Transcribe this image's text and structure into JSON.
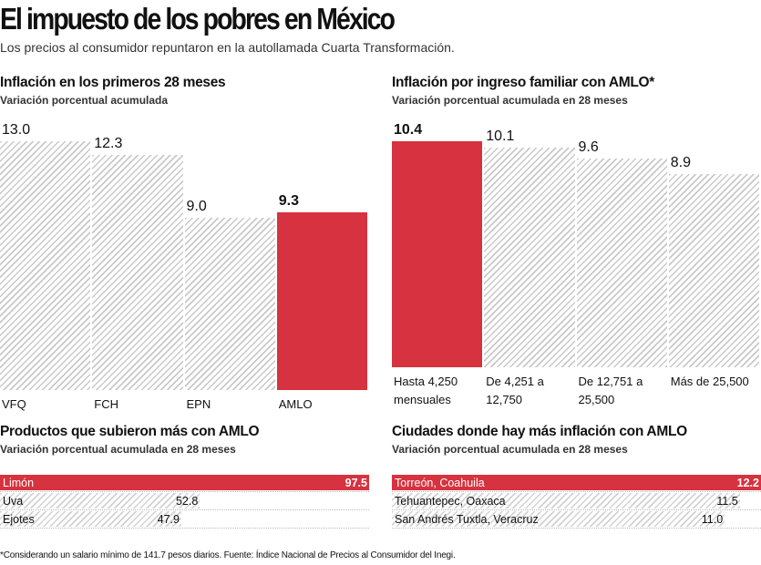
{
  "title": "El impuesto de los pobres en México",
  "subtitle": "Los precios al consumidor repuntaron en la autollamada Cuarta Transformación.",
  "footnote": "*Considerando un salario mínimo de 141.7 pesos diarios. Fuente: Índice Nacional de Precios al Consumidor del Inegi.",
  "chart_data": [
    {
      "type": "bar",
      "orientation": "vertical",
      "title": "Inflación en los primeros 28 meses",
      "subtitle": "Variación porcentual acumulada",
      "categories": [
        "VFQ",
        "FCH",
        "EPN",
        "AMLO"
      ],
      "values": [
        13.0,
        12.3,
        9.0,
        9.3
      ],
      "value_labels": [
        "13.0",
        "12.3",
        "9.0",
        "9.3"
      ],
      "highlight": [
        false,
        false,
        false,
        true
      ],
      "color": "#d7323f",
      "hatch_color": "#c9c9c9"
    },
    {
      "type": "bar",
      "orientation": "vertical",
      "title": "Inflación por ingreso familiar con AMLO*",
      "subtitle": "Variación porcentual acumulada en 28 meses",
      "categories": [
        "Hasta 4,250 mensuales",
        "De 4,251 a 12,750",
        "De 12,751 a 25,500",
        "Más de 25,500"
      ],
      "values": [
        10.4,
        10.1,
        9.6,
        8.9
      ],
      "highlight": [
        true,
        false,
        false,
        false
      ],
      "color": "#d7323f",
      "hatch_color": "#c9c9c9"
    },
    {
      "type": "bar",
      "orientation": "horizontal",
      "title": "Productos que subieron más con AMLO",
      "subtitle": "Variación porcentual acumulada en 28 meses",
      "categories": [
        "Limón",
        "Uva",
        "Ejotes"
      ],
      "values": [
        97.5,
        52.8,
        47.9
      ],
      "highlight": [
        true,
        false,
        false
      ],
      "color": "#d7323f",
      "hatch_color": "#d2d2d2"
    },
    {
      "type": "bar",
      "orientation": "horizontal",
      "title": "Ciudades donde hay más inflación con AMLO",
      "subtitle": "Variación porcentual acumulada en 28 meses",
      "categories": [
        "Torreón, Coahuila",
        "Tehuantepec, Oaxaca",
        "San Andrés Tuxtla, Veracruz"
      ],
      "values": [
        12.2,
        11.5,
        11.0
      ],
      "value_labels": [
        "12.2",
        "11.5",
        "11.0"
      ],
      "highlight": [
        true,
        false,
        false
      ],
      "color": "#d7323f",
      "hatch_color": "#d2d2d2"
    }
  ]
}
